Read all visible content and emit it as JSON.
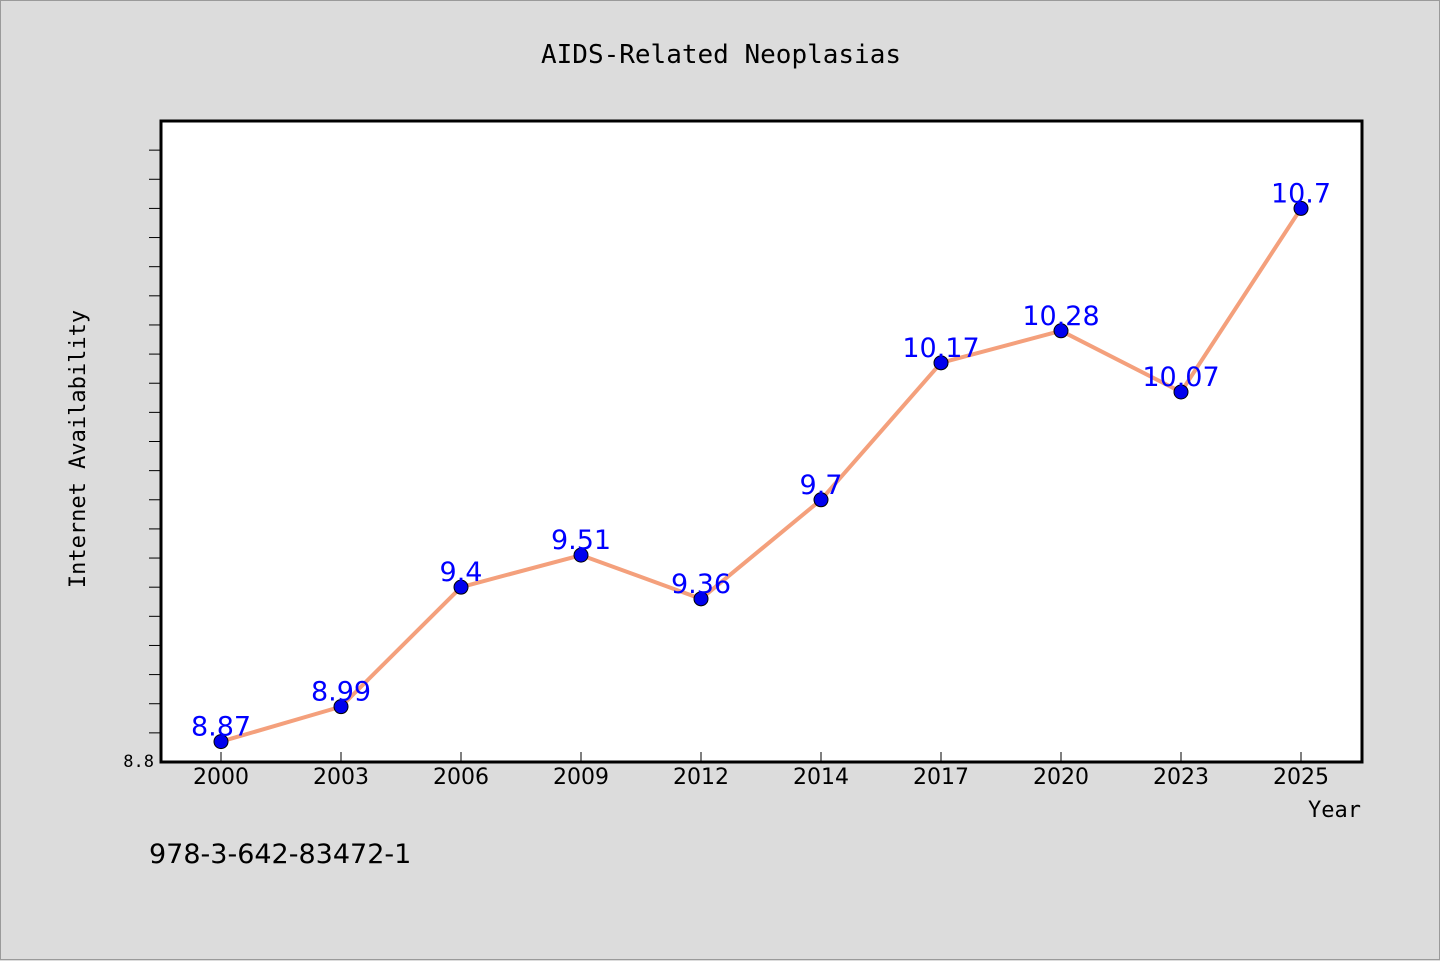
{
  "chart_data": {
    "type": "line",
    "title": "AIDS-Related Neoplasias",
    "xlabel": "Year",
    "ylabel": "Internet Availability",
    "x": [
      "2000",
      "2003",
      "2006",
      "2009",
      "2012",
      "2014",
      "2017",
      "2020",
      "2023",
      "2025"
    ],
    "series": [
      {
        "values": [
          8.87,
          8.99,
          9.4,
          9.51,
          9.36,
          9.7,
          10.17,
          10.28,
          10.07,
          10.7
        ],
        "data_labels": [
          "8.87",
          "8.99",
          "9.4",
          "9.51",
          "9.36",
          "9.7",
          "10.17",
          "10.28",
          "10.07",
          "10.7"
        ]
      }
    ],
    "ylim": [
      8.8,
      11.0
    ],
    "y_tick_labels": [
      "8.8"
    ],
    "grid": false,
    "legend": "none",
    "colors": {
      "line": "#f4a07c",
      "marker": "#0000ee",
      "label": "#0000ff",
      "frame": "#000000",
      "plot_bg": "#ffffff",
      "page_bg": "#dcdcdc"
    }
  },
  "footer": {
    "code": "978-3-642-83472-1"
  }
}
